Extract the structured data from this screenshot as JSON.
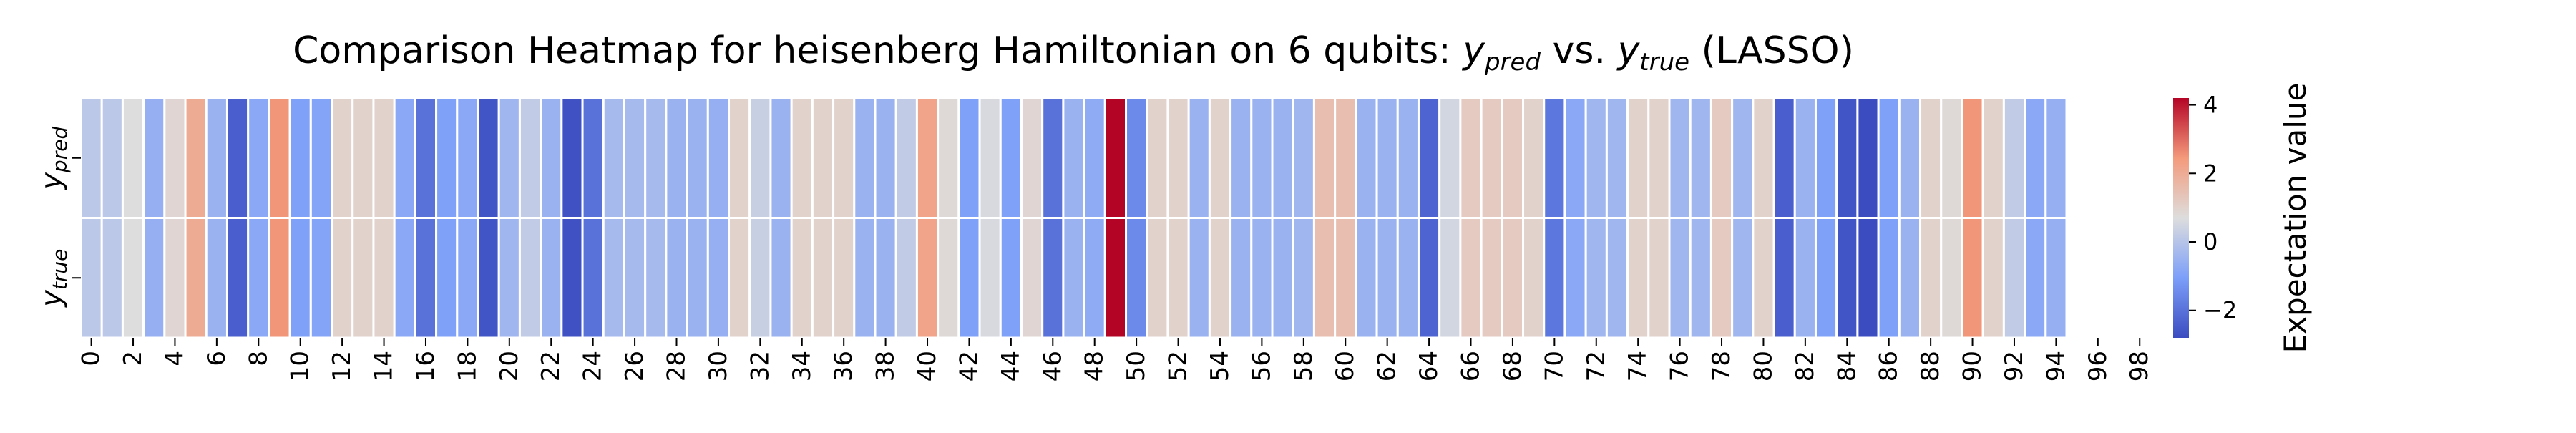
{
  "chart_data": {
    "type": "heatmap",
    "title": "Comparison Heatmap for heisenberg Hamiltonian on 6 qubits: y_pred vs. y_true (LASSO)",
    "rows": [
      "y_pred",
      "y_true"
    ],
    "x_tick_labels": [
      "0",
      "2",
      "4",
      "6",
      "8",
      "10",
      "12",
      "14",
      "16",
      "18",
      "20",
      "22",
      "24",
      "26",
      "28",
      "30",
      "32",
      "34",
      "36",
      "38",
      "40",
      "42",
      "44",
      "46",
      "48",
      "50",
      "52",
      "54",
      "56",
      "58",
      "60",
      "62",
      "64",
      "66",
      "68",
      "70",
      "72",
      "74",
      "76",
      "78",
      "80",
      "82",
      "84",
      "86",
      "88",
      "90",
      "92",
      "94",
      "96",
      "98"
    ],
    "values": [
      [
        0.1,
        0.1,
        0.7,
        -0.6,
        0.9,
        2.0,
        -0.5,
        -2.4,
        -0.8,
        2.5,
        -1.0,
        -0.9,
        1.0,
        1.0,
        1.0,
        -0.8,
        -2.0,
        -1.0,
        -0.8,
        -2.6,
        -0.4,
        0.2,
        -0.5,
        -2.7,
        -2.0,
        -0.3,
        -0.3,
        -0.3,
        -0.5,
        -0.5,
        -0.6,
        1.0,
        0.3,
        -0.5,
        1.0,
        1.0,
        1.0,
        -0.5,
        -0.5,
        0.2,
        2.2,
        0.8,
        -1.0,
        0.6,
        -1.0,
        0.9,
        -2.0,
        -0.5,
        -0.7,
        4.2,
        -1.5,
        1.0,
        1.0,
        -0.5,
        1.0,
        -0.5,
        -0.5,
        -0.5,
        -0.4,
        1.5,
        1.5,
        -0.5,
        -0.5,
        -0.5,
        -2.3,
        0.5,
        1.2,
        1.2,
        1.2,
        1.0,
        -1.9,
        -0.8,
        -0.4,
        -0.4,
        1.0,
        1.0,
        -0.4,
        -0.4,
        1.2,
        -0.4,
        1.0,
        -2.4,
        -0.5,
        -1.0,
        -2.6,
        -2.8,
        -1.0,
        -0.5,
        1.0,
        0.8,
        2.5,
        1.0,
        0.2,
        -0.8,
        -0.6
      ],
      [
        0.1,
        0.1,
        0.7,
        -0.6,
        0.9,
        2.0,
        -0.5,
        -2.4,
        -0.8,
        2.5,
        -1.0,
        -0.9,
        1.0,
        1.0,
        1.0,
        -0.8,
        -2.0,
        -1.0,
        -0.8,
        -2.6,
        -0.4,
        0.2,
        -0.5,
        -2.7,
        -2.0,
        -0.3,
        -0.3,
        -0.3,
        -0.5,
        -0.5,
        -0.6,
        1.0,
        0.3,
        -0.5,
        1.0,
        1.0,
        1.0,
        -0.5,
        -0.5,
        0.2,
        2.2,
        0.8,
        -1.0,
        0.6,
        -1.0,
        0.9,
        -2.0,
        -0.5,
        -0.7,
        4.2,
        -1.5,
        1.0,
        1.0,
        -0.5,
        1.0,
        -0.5,
        -0.5,
        -0.5,
        -0.4,
        1.5,
        1.5,
        -0.5,
        -0.5,
        -0.5,
        -2.3,
        0.5,
        1.2,
        1.2,
        1.2,
        1.0,
        -1.9,
        -0.8,
        -0.4,
        -0.4,
        1.0,
        1.0,
        -0.4,
        -0.4,
        1.2,
        -0.4,
        1.0,
        -2.4,
        -0.5,
        -1.0,
        -2.6,
        -2.8,
        -1.0,
        -0.5,
        1.0,
        0.8,
        2.5,
        1.0,
        0.2,
        -0.8,
        -0.6
      ]
    ],
    "colormap": "coolwarm",
    "colorbar": {
      "label": "Expectation value",
      "vmin": -2.8,
      "vmax": 4.2,
      "ticks": [
        -2,
        0,
        2,
        4
      ],
      "tick_labels": [
        "−2",
        "0",
        "2",
        "4"
      ]
    },
    "grid_line_color": "#ffffff"
  }
}
